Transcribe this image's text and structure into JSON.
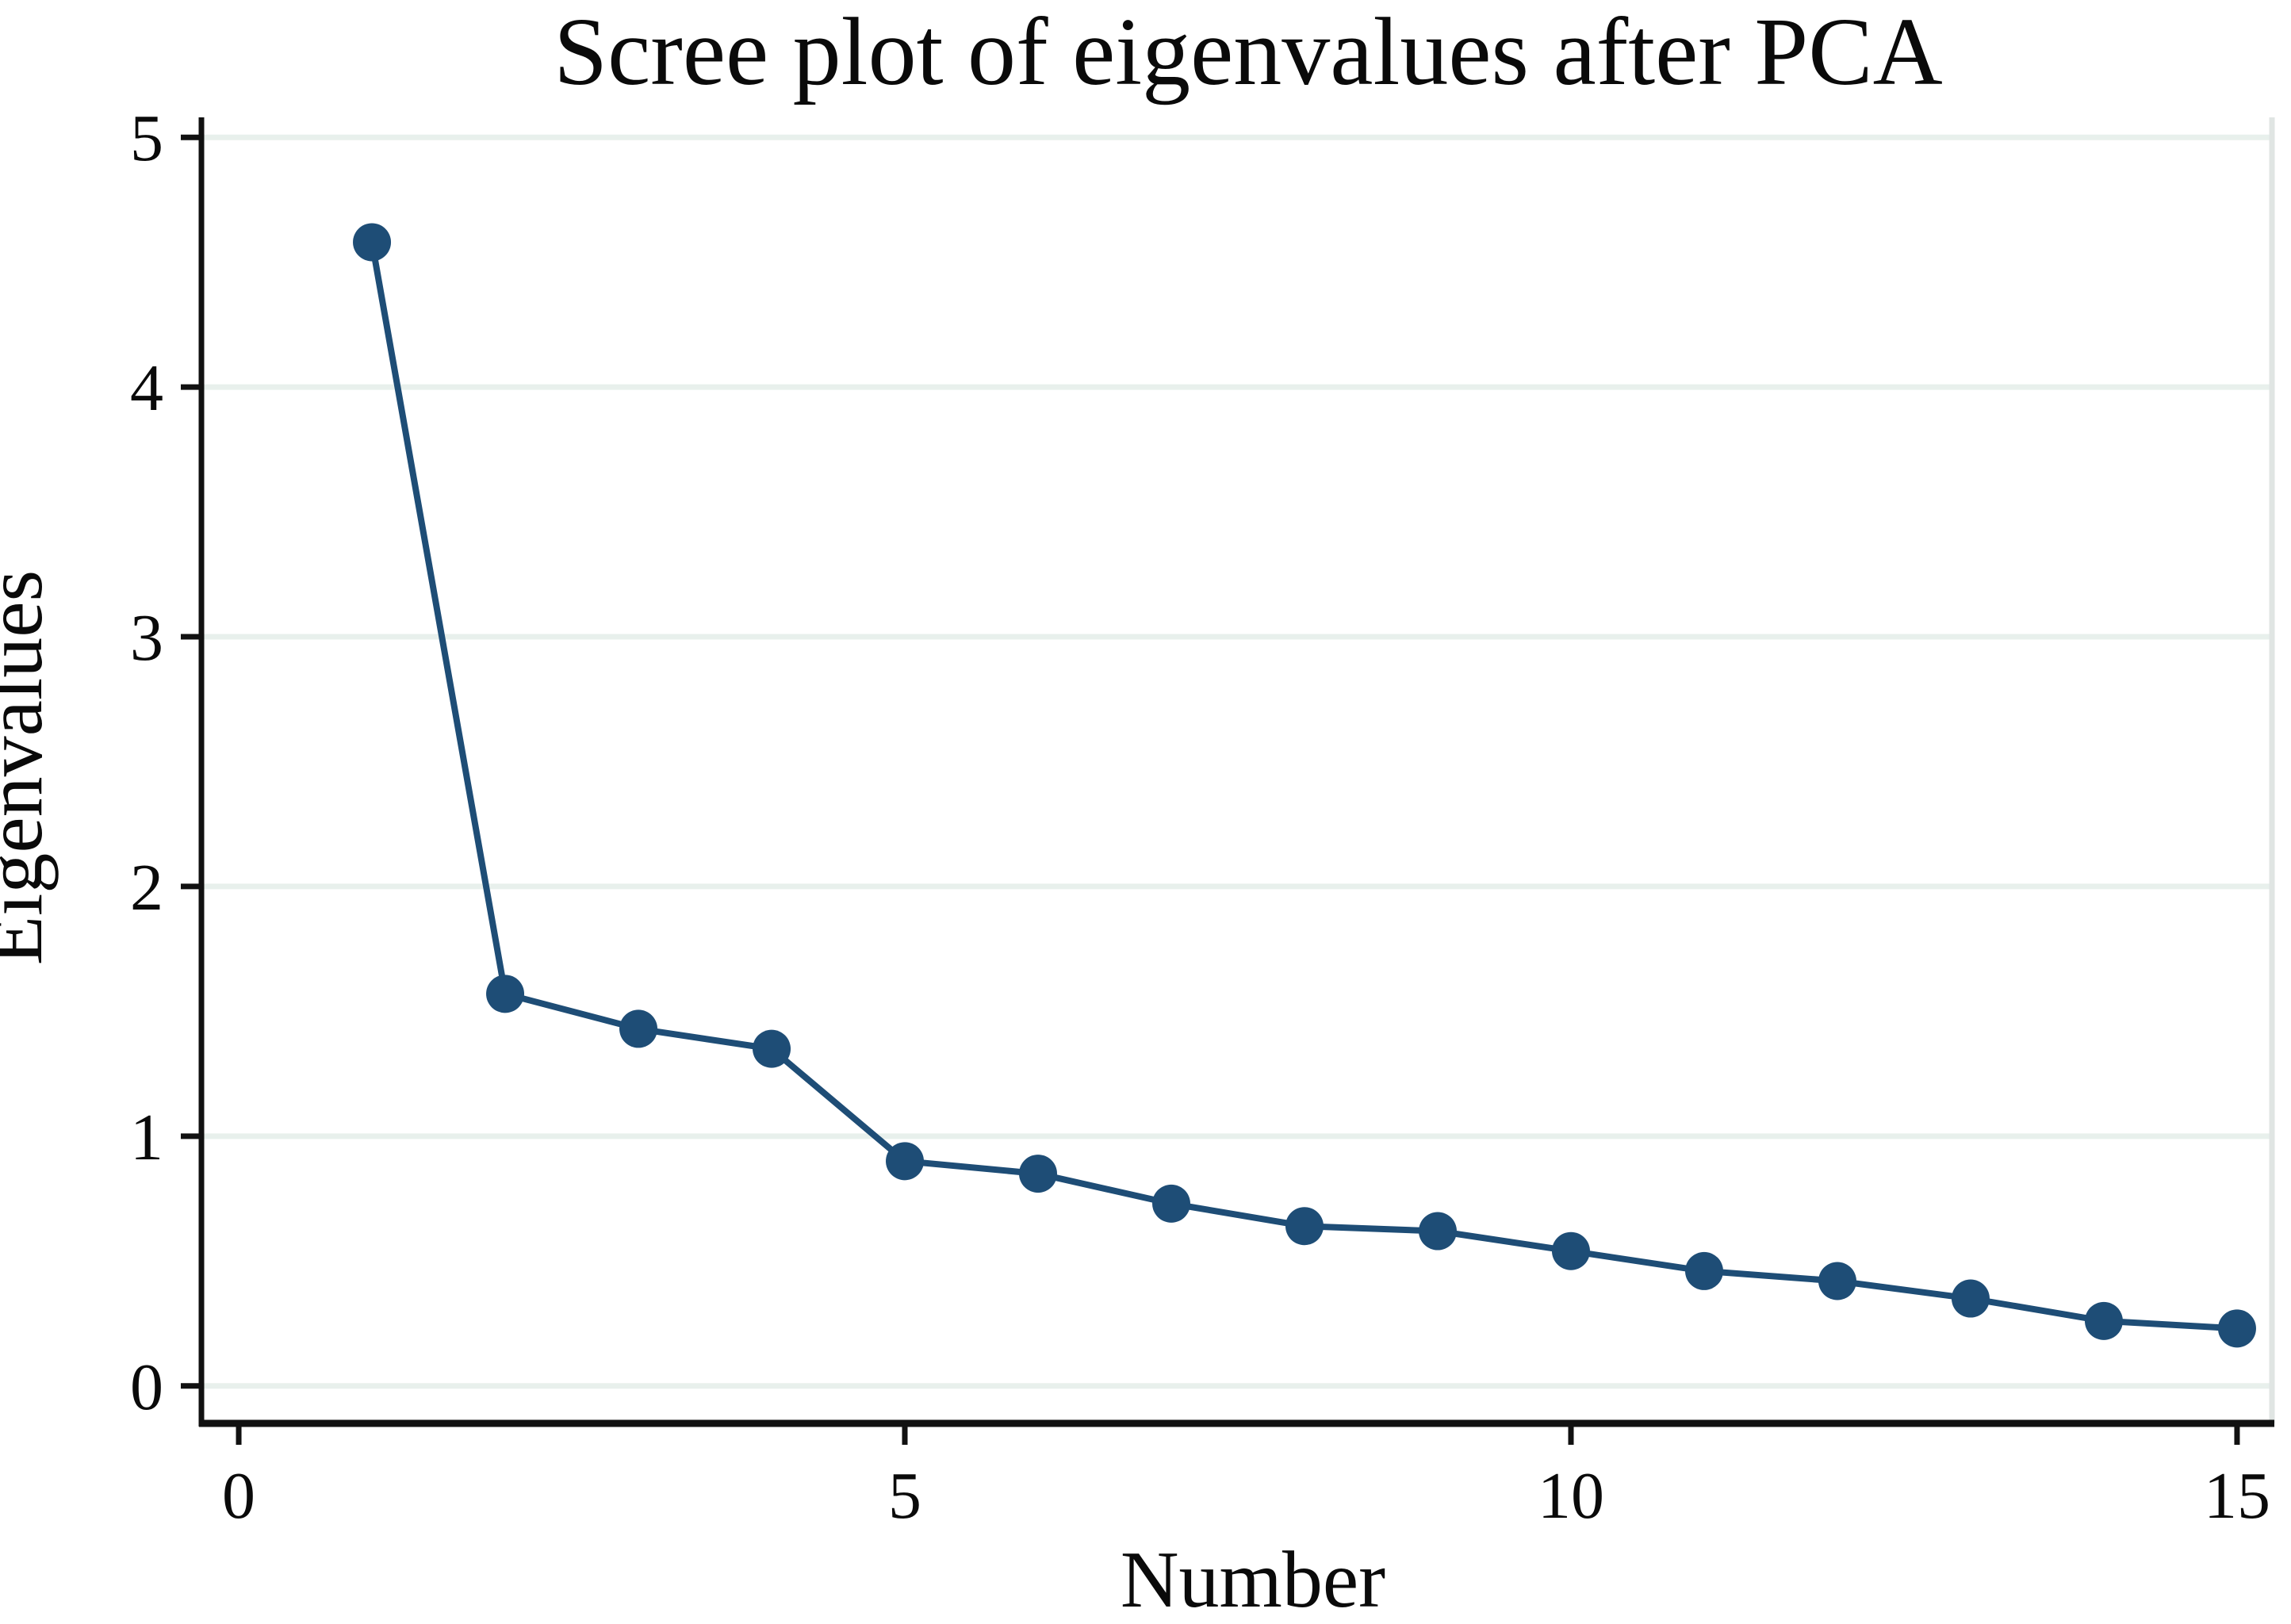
{
  "chart_data": {
    "type": "line",
    "title": "Scree plot of eigenvalues after PCA",
    "xlabel": "Number",
    "ylabel": "Eigenvalues",
    "series": [
      {
        "name": "Eigenvalues",
        "x": [
          1,
          2,
          3,
          4,
          5,
          6,
          7,
          8,
          9,
          10,
          11,
          12,
          13,
          14,
          15
        ],
        "y": [
          4.58,
          1.57,
          1.43,
          1.35,
          0.9,
          0.85,
          0.73,
          0.64,
          0.62,
          0.54,
          0.46,
          0.42,
          0.35,
          0.26,
          0.23
        ]
      }
    ],
    "x_ticks": [
      0,
      5,
      10,
      15
    ],
    "y_ticks": [
      0,
      1,
      2,
      3,
      4,
      5
    ],
    "x_tick_labels": [
      "0",
      "5",
      "10",
      "15"
    ],
    "y_tick_labels": [
      "0",
      "1",
      "2",
      "3",
      "4",
      "5"
    ],
    "xlim": [
      -0.28,
      15.28
    ],
    "ylim": [
      -0.15,
      5.08
    ],
    "grid": "horizontal-only",
    "legend_position": "none",
    "marker": "filled-circle",
    "line_style": "solid",
    "colors": {
      "series": "#1e4d76",
      "gridline": "#e8f0ec",
      "axis": "#111111",
      "frame_right": "#e0e5e3",
      "text": "#0a0a0a",
      "background": "#ffffff"
    }
  }
}
